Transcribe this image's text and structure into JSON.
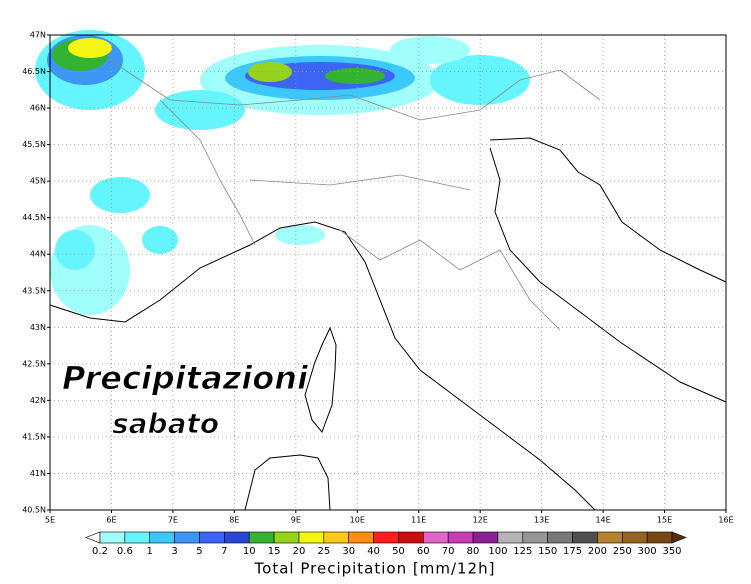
{
  "map": {
    "lat_ticks": [
      "47N",
      "46.5N",
      "46N",
      "45.5N",
      "45N",
      "44.5N",
      "44N",
      "43.5N",
      "43N",
      "42.5N",
      "42N",
      "41.5N",
      "41N",
      "40.5N"
    ],
    "lon_ticks": [
      "5E",
      "6E",
      "7E",
      "8E",
      "9E",
      "10E",
      "11E",
      "12E",
      "13E",
      "14E",
      "15E",
      "16E"
    ]
  },
  "overlay": {
    "line1": "Precipitazioni",
    "line2": "sabato"
  },
  "legend": {
    "title": "Total Precipitation [mm/12h]",
    "levels": [
      0.2,
      0.6,
      1,
      3,
      5,
      7,
      10,
      15,
      20,
      25,
      30,
      40,
      50,
      60,
      70,
      80,
      100,
      125,
      150,
      175,
      200,
      250,
      300,
      350
    ],
    "colors": [
      "#ffffff",
      "#a0fffa",
      "#64f5ff",
      "#3cc8ff",
      "#3c96f5",
      "#3c64f5",
      "#2846d2",
      "#32b432",
      "#96d21e",
      "#f5f514",
      "#ffc81e",
      "#ff8c14",
      "#ff1e1e",
      "#c80f0f",
      "#e164c8",
      "#c83cb4",
      "#8c1e96",
      "#b4b4b4",
      "#969696",
      "#787878",
      "#505050",
      "#b4822d",
      "#96641e",
      "#784614",
      "#5a2d0a"
    ]
  }
}
